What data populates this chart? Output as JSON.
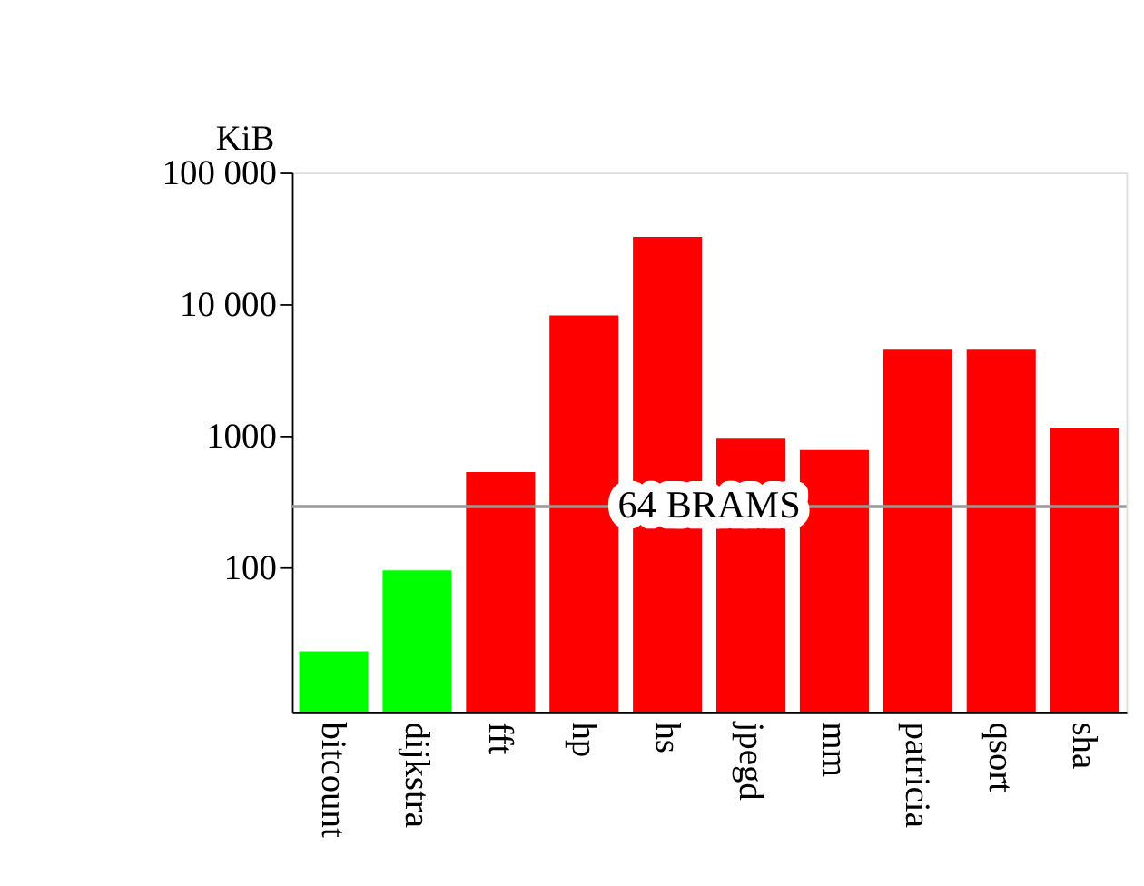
{
  "chart_data": {
    "type": "bar",
    "ylabel": "KiB",
    "log": true,
    "categories": [
      "bitcount",
      "dijkstra",
      "fft",
      "hp",
      "hs",
      "jpegd",
      "mm",
      "patricia",
      "qsort",
      "sha"
    ],
    "values": [
      23,
      95,
      530,
      8200,
      32500,
      950,
      780,
      4500,
      4500,
      1150
    ],
    "colors": [
      "#00ff00",
      "#00ff00",
      "#ff0000",
      "#ff0000",
      "#ff0000",
      "#ff0000",
      "#ff0000",
      "#ff0000",
      "#ff0000",
      "#ff0000"
    ],
    "ylim": [
      8,
      100000
    ],
    "yticks": [
      100,
      1000,
      {
        "value": 10000,
        "label": "10 000"
      },
      {
        "value": 100000,
        "label": "100 000"
      }
    ],
    "ref_lines": [
      {
        "axis": "y",
        "value": 290,
        "label": "64 BRAMS",
        "color": "#999999"
      }
    ],
    "grid": false
  }
}
